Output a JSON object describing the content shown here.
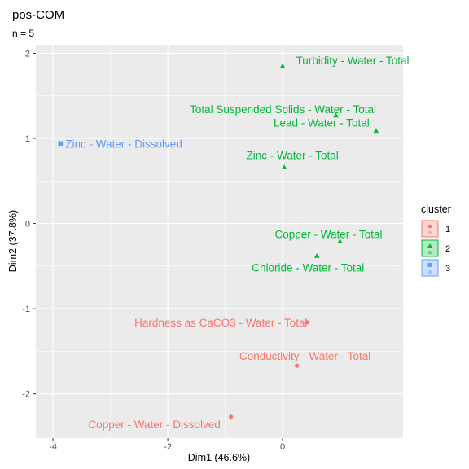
{
  "chart_data": {
    "type": "scatter",
    "title": "pos-COM",
    "subtitle": "n = 5",
    "xlabel": "Dim1 (46.6%)",
    "ylabel": "Dim2 (37.8%)",
    "xlim": [
      -4.3,
      2.1
    ],
    "ylim": [
      -2.52,
      2.1
    ],
    "xticks": [
      -4,
      -2,
      0
    ],
    "yticks": [
      -2,
      -1,
      0,
      1,
      2
    ],
    "grid": true,
    "legend_position": "right",
    "legend": {
      "title": "cluster",
      "items": [
        {
          "label": "1",
          "color": "#F8766D",
          "shape": "circle"
        },
        {
          "label": "2",
          "color": "#00BA38",
          "shape": "triangle"
        },
        {
          "label": "3",
          "color": "#619CFF",
          "shape": "square"
        }
      ]
    },
    "colors": {
      "1": "#F8766D",
      "2": "#00BA38",
      "3": "#619CFF"
    },
    "points": [
      {
        "label": "Turbidity - Water - Total",
        "x": 0.0,
        "y": 1.85,
        "cluster": "2"
      },
      {
        "label": "Total Suspended Solids - Water - Total",
        "x": 0.93,
        "y": 1.27,
        "cluster": "2"
      },
      {
        "label": "Lead - Water - Total",
        "x": 1.63,
        "y": 1.09,
        "cluster": "2"
      },
      {
        "label": "Zinc - Water - Total",
        "x": 0.03,
        "y": 0.66,
        "cluster": "2"
      },
      {
        "label": "Copper - Water - Total",
        "x": 1.0,
        "y": -0.21,
        "cluster": "2"
      },
      {
        "label": "Chloride - Water - Total",
        "x": 0.6,
        "y": -0.38,
        "cluster": "2"
      },
      {
        "label": "Zinc - Water - Dissolved",
        "x": -3.87,
        "y": 0.94,
        "cluster": "3"
      },
      {
        "label": "Hardness as CaCO3 - Water - Total",
        "x": 0.43,
        "y": -1.16,
        "cluster": "1"
      },
      {
        "label": "Conductivity - Water - Total",
        "x": 0.25,
        "y": -1.67,
        "cluster": "1"
      },
      {
        "label": "Copper - Water - Dissolved",
        "x": -0.9,
        "y": -2.27,
        "cluster": "1"
      }
    ]
  }
}
